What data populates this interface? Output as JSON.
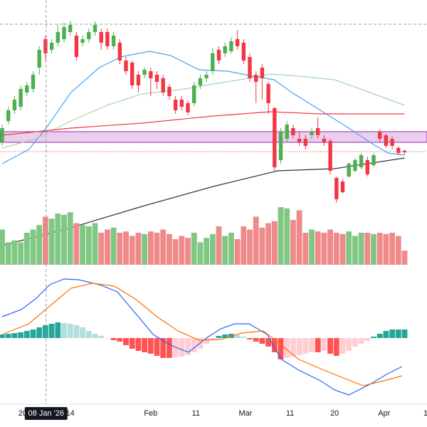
{
  "chart_data": {
    "type": "candlestick",
    "xlim": [
      -0.345,
      68.62
    ],
    "ylim": [
      0,
      300
    ],
    "up_color": "#4caf50",
    "down_color": "#f23645",
    "candles": [
      {
        "o": 100,
        "h": 125,
        "l": 95,
        "c": 120
      },
      {
        "o": 130,
        "h": 150,
        "l": 125,
        "c": 145
      },
      {
        "o": 145,
        "h": 165,
        "l": 140,
        "c": 160
      },
      {
        "o": 150,
        "h": 180,
        "l": 145,
        "c": 175
      },
      {
        "o": 170,
        "h": 185,
        "l": 165,
        "c": 180
      },
      {
        "o": 175,
        "h": 200,
        "l": 170,
        "c": 195
      },
      {
        "o": 205,
        "h": 235,
        "l": 195,
        "c": 230
      },
      {
        "o": 245,
        "h": 250,
        "l": 215,
        "c": 225
      },
      {
        "o": 230,
        "h": 245,
        "l": 225,
        "c": 240
      },
      {
        "o": 240,
        "h": 265,
        "l": 235,
        "c": 255
      },
      {
        "o": 245,
        "h": 268,
        "l": 240,
        "c": 262
      },
      {
        "o": 255,
        "h": 270,
        "l": 250,
        "c": 265
      },
      {
        "o": 250,
        "h": 255,
        "l": 215,
        "c": 220
      },
      {
        "o": 240,
        "h": 250,
        "l": 235,
        "c": 245
      },
      {
        "o": 245,
        "h": 260,
        "l": 240,
        "c": 255
      },
      {
        "o": 255,
        "h": 270,
        "l": 250,
        "c": 265
      },
      {
        "o": 255,
        "h": 260,
        "l": 230,
        "c": 240
      },
      {
        "o": 255,
        "h": 260,
        "l": 230,
        "c": 235
      },
      {
        "o": 235,
        "h": 255,
        "l": 230,
        "c": 250
      },
      {
        "o": 240,
        "h": 245,
        "l": 210,
        "c": 215
      },
      {
        "o": 215,
        "h": 220,
        "l": 195,
        "c": 200
      },
      {
        "o": 212,
        "h": 215,
        "l": 175,
        "c": 180
      },
      {
        "o": 195,
        "h": 200,
        "l": 170,
        "c": 180
      },
      {
        "o": 195,
        "h": 205,
        "l": 190,
        "c": 202
      },
      {
        "o": 200,
        "h": 205,
        "l": 165,
        "c": 190
      },
      {
        "o": 195,
        "h": 200,
        "l": 175,
        "c": 185
      },
      {
        "o": 190,
        "h": 195,
        "l": 165,
        "c": 170
      },
      {
        "o": 178,
        "h": 182,
        "l": 160,
        "c": 165
      },
      {
        "o": 160,
        "h": 165,
        "l": 140,
        "c": 145
      },
      {
        "o": 160,
        "h": 165,
        "l": 145,
        "c": 150
      },
      {
        "o": 155,
        "h": 158,
        "l": 138,
        "c": 142
      },
      {
        "o": 155,
        "h": 185,
        "l": 150,
        "c": 180
      },
      {
        "o": 180,
        "h": 195,
        "l": 175,
        "c": 190
      },
      {
        "o": 190,
        "h": 200,
        "l": 185,
        "c": 195
      },
      {
        "o": 200,
        "h": 232,
        "l": 195,
        "c": 225
      },
      {
        "o": 230,
        "h": 235,
        "l": 210,
        "c": 215
      },
      {
        "o": 225,
        "h": 240,
        "l": 220,
        "c": 235
      },
      {
        "o": 228,
        "h": 248,
        "l": 225,
        "c": 242
      },
      {
        "o": 245,
        "h": 258,
        "l": 230,
        "c": 235
      },
      {
        "o": 240,
        "h": 245,
        "l": 210,
        "c": 215
      },
      {
        "o": 220,
        "h": 225,
        "l": 185,
        "c": 190
      },
      {
        "o": 195,
        "h": 200,
        "l": 155,
        "c": 185
      },
      {
        "o": 205,
        "h": 210,
        "l": 160,
        "c": 190
      },
      {
        "o": 182,
        "h": 185,
        "l": 140,
        "c": 155
      },
      {
        "o": 148,
        "h": 150,
        "l": 60,
        "c": 65
      },
      {
        "o": 75,
        "h": 120,
        "l": 70,
        "c": 115
      },
      {
        "o": 105,
        "h": 130,
        "l": 100,
        "c": 125
      },
      {
        "o": 120,
        "h": 125,
        "l": 105,
        "c": 110
      },
      {
        "o": 105,
        "h": 115,
        "l": 95,
        "c": 100
      },
      {
        "o": 105,
        "h": 110,
        "l": 90,
        "c": 95
      },
      {
        "o": 110,
        "h": 120,
        "l": 105,
        "c": 115
      },
      {
        "o": 120,
        "h": 135,
        "l": 105,
        "c": 110
      },
      {
        "o": 105,
        "h": 110,
        "l": 95,
        "c": 100
      },
      {
        "o": 102,
        "h": 105,
        "l": 55,
        "c": 60
      },
      {
        "o": 50,
        "h": 52,
        "l": 15,
        "c": 20
      },
      {
        "o": 45,
        "h": 48,
        "l": 28,
        "c": 30
      },
      {
        "o": 52,
        "h": 72,
        "l": 50,
        "c": 70
      },
      {
        "o": 60,
        "h": 78,
        "l": 58,
        "c": 75
      },
      {
        "o": 65,
        "h": 85,
        "l": 62,
        "c": 82
      },
      {
        "o": 75,
        "h": 80,
        "l": 52,
        "c": 55
      },
      {
        "o": 68,
        "h": 85,
        "l": 65,
        "c": 82
      },
      {
        "o": 115,
        "h": 118,
        "l": 100,
        "c": 105
      },
      {
        "o": 110,
        "h": 112,
        "l": 92,
        "c": 95
      },
      {
        "o": 105,
        "h": 108,
        "l": 90,
        "c": 95
      },
      {
        "o": 92,
        "h": 95,
        "l": 82,
        "c": 85
      },
      {
        "o": 88,
        "h": 90,
        "l": 83,
        "c": 86
      }
    ],
    "moving_averages": [
      {
        "color": "#42a5f5",
        "x": [
          0,
          4.3,
          7.1,
          11.1,
          15.7,
          19.2,
          23.8,
          27.2,
          31.8,
          36.4,
          40.5,
          43.9,
          46.8,
          51.4,
          56,
          59.4,
          62.3,
          65
        ],
        "values": [
          70,
          90,
          120,
          170,
          205,
          220,
          228,
          222,
          202,
          200,
          193,
          188,
          170,
          145,
          120,
          100,
          85,
          82
        ]
      },
      {
        "color": "#a5d6a7",
        "x": [
          0,
          5.4,
          11.1,
          16.9,
          22.6,
          29.5,
          34.1,
          39.9,
          43.3,
          47.9,
          53.7,
          59.4,
          65
        ],
        "values": [
          92,
          105,
          130,
          152,
          168,
          175,
          182,
          190,
          196,
          193,
          188,
          170,
          152
        ]
      },
      {
        "color": "#f23645",
        "x": [
          0,
          11.1,
          22.6,
          34.1,
          43.3,
          51.4,
          65
        ],
        "values": [
          110,
          120,
          127,
          137,
          143,
          140,
          140
        ]
      },
      {
        "color": "#333333",
        "x": [
          0,
          11.1,
          22.6,
          34.1,
          44.5,
          53.7,
          65
        ],
        "values": [
          -45,
          -20,
          10,
          38,
          60,
          63,
          78
        ]
      }
    ],
    "band": {
      "range": [
        100,
        115
      ],
      "color": "#e1bee7",
      "border": "#9c27b0"
    },
    "levels": [
      {
        "value": 87,
        "color": "#f23645",
        "style": "dotted"
      },
      {
        "value": 266,
        "color": "#9598a1",
        "style": "dashed"
      }
    ],
    "crosshair": {
      "x": 7.1,
      "label": "08 Jan '26"
    },
    "xticks": [
      {
        "value": 3.3,
        "label": "20"
      },
      {
        "value": 11,
        "label": "14"
      },
      {
        "value": 24,
        "label": "Feb"
      },
      {
        "value": 31.3,
        "label": "11"
      },
      {
        "value": 39.3,
        "label": "Mar"
      },
      {
        "value": 46.5,
        "label": "11"
      },
      {
        "value": 53.7,
        "label": "20"
      },
      {
        "value": 61.7,
        "label": "Apr"
      },
      {
        "value": 68.4,
        "label": "1"
      }
    ],
    "volume": {
      "ylim": [
        0,
        100
      ],
      "up_color": "#81c784",
      "down_color": "#f08a8a",
      "values": [
        55,
        35,
        38,
        35,
        50,
        55,
        62,
        75,
        72,
        80,
        78,
        82,
        65,
        62,
        60,
        65,
        50,
        55,
        58,
        50,
        52,
        45,
        50,
        48,
        52,
        50,
        55,
        48,
        40,
        45,
        42,
        50,
        35,
        42,
        48,
        60,
        45,
        50,
        40,
        60,
        55,
        75,
        58,
        65,
        68,
        90,
        88,
        70,
        85,
        50,
        55,
        52,
        50,
        55,
        50,
        48,
        52,
        45,
        50,
        50,
        48,
        50,
        48,
        50,
        45,
        22
      ]
    },
    "macd": {
      "ylim": [
        -100,
        100
      ],
      "line": {
        "color": "#2962ff",
        "x": [
          0,
          3.1,
          5.4,
          7.7,
          10,
          12.3,
          15.7,
          18.6,
          21.5,
          24.4,
          27.2,
          30.1,
          33,
          35.3,
          37.6,
          39.9,
          42.8,
          45.1,
          47.9,
          51.4,
          53.7,
          56,
          59.4,
          62.3,
          64.6
        ],
        "values": [
          30,
          40,
          55,
          75,
          83,
          82,
          75,
          65,
          35,
          5,
          -10,
          -20,
          0,
          13,
          20,
          20,
          5,
          -30,
          -45,
          -60,
          -73,
          -80,
          -65,
          -50,
          -40
        ]
      },
      "signal": {
        "color": "#ff6d00",
        "x": [
          0,
          4.3,
          7.7,
          11.1,
          14.6,
          18.1,
          21.5,
          25,
          28.4,
          31.8,
          35.3,
          38.7,
          42.2,
          45.1,
          47.9,
          51.4,
          54.8,
          58.3,
          61.7,
          64.6
        ],
        "values": [
          5,
          20,
          45,
          70,
          77,
          73,
          55,
          30,
          10,
          -3,
          -2,
          7,
          10,
          -10,
          -30,
          -43,
          -55,
          -67,
          -60,
          -53
        ]
      },
      "histogram": {
        "colors": [
          "#26a69a",
          "#b2dfdb",
          "#ff5252",
          "#ffcdd2"
        ],
        "values": [
          5,
          6,
          7,
          8,
          10,
          12,
          15,
          18,
          20,
          22,
          21,
          20,
          18,
          15,
          10,
          6,
          3,
          0,
          -3,
          -5,
          -10,
          -15,
          -18,
          -20,
          -22,
          -25,
          -28,
          -28,
          -27,
          -26,
          -24,
          -20,
          -15,
          -8,
          -3,
          3,
          5,
          6,
          4,
          2,
          -2,
          -5,
          -8,
          -12,
          -20,
          -30,
          -28,
          -26,
          -24,
          -22,
          -20,
          -20,
          -18,
          -22,
          -25,
          -22,
          -18,
          -12,
          -8,
          -4,
          2,
          6,
          10,
          12,
          12,
          12
        ]
      }
    }
  }
}
